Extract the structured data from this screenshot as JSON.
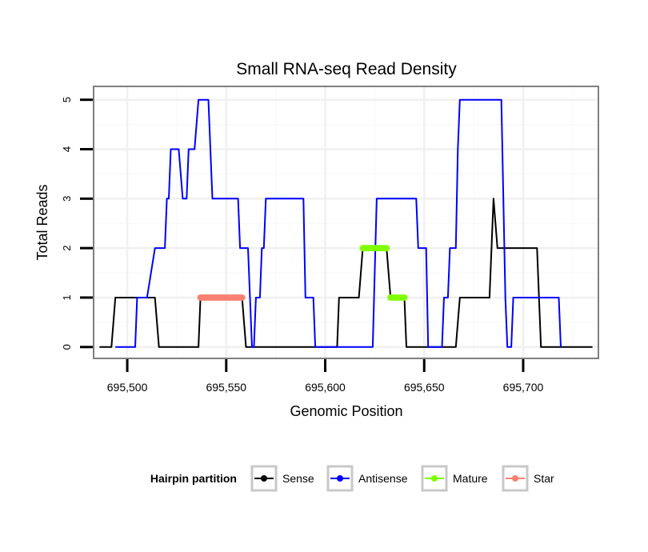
{
  "chart_data": {
    "type": "line",
    "title": "Small RNA-seq Read Density",
    "xlabel": "Genomic Position",
    "ylabel": "Total Reads",
    "xlim": [
      695483,
      695738
    ],
    "ylim": [
      -0.23,
      5.27
    ],
    "xticks": [
      695500,
      695550,
      695600,
      695650,
      695700
    ],
    "xtick_labels": [
      "695,500",
      "695,550",
      "695,600",
      "695,650",
      "695,700"
    ],
    "yticks": [
      0,
      1,
      2,
      3,
      4,
      5
    ],
    "ytick_labels": [
      "0",
      "1",
      "2",
      "3",
      "4",
      "5"
    ],
    "grid": true,
    "legend": {
      "title": "Hairpin partition",
      "position": "bottom",
      "entries": [
        "Sense",
        "Antisense",
        "Mature",
        "Star"
      ]
    },
    "colors": {
      "Sense": "#000000",
      "Antisense": "#0000ff",
      "Mature": "#80ff00",
      "Star": "#fa8072"
    },
    "series": [
      {
        "name": "Sense",
        "color": "#000000",
        "points": [
          [
            695486,
            0
          ],
          [
            695492,
            0
          ],
          [
            695494,
            1
          ],
          [
            695514,
            1
          ],
          [
            695516,
            0
          ],
          [
            695536,
            0
          ],
          [
            695537,
            1
          ],
          [
            695558,
            1
          ],
          [
            695560,
            0
          ],
          [
            695606,
            0
          ],
          [
            695607,
            1
          ],
          [
            695617,
            1
          ],
          [
            695619,
            2
          ],
          [
            695631,
            2
          ],
          [
            695633,
            1
          ],
          [
            695640,
            1
          ],
          [
            695641,
            0
          ],
          [
            695666,
            0
          ],
          [
            695668,
            1
          ],
          [
            695683,
            1
          ],
          [
            695685,
            3
          ],
          [
            695687,
            2
          ],
          [
            695707,
            2
          ],
          [
            695709,
            0
          ],
          [
            695735,
            0
          ]
        ]
      },
      {
        "name": "Antisense",
        "color": "#0000ff",
        "points": [
          [
            695494,
            0
          ],
          [
            695504,
            0
          ],
          [
            695505,
            1
          ],
          [
            695510,
            1
          ],
          [
            695514,
            2
          ],
          [
            695519,
            2
          ],
          [
            695520,
            3
          ],
          [
            695521,
            3
          ],
          [
            695522,
            4
          ],
          [
            695526,
            4
          ],
          [
            695528,
            3
          ],
          [
            695530,
            3
          ],
          [
            695531,
            4
          ],
          [
            695534,
            4
          ],
          [
            695536,
            5
          ],
          [
            695541,
            5
          ],
          [
            695543,
            3
          ],
          [
            695556,
            3
          ],
          [
            695557,
            2
          ],
          [
            695561,
            2
          ],
          [
            695562,
            1
          ],
          [
            695563,
            0
          ],
          [
            695564,
            0
          ],
          [
            695565,
            1
          ],
          [
            695567,
            1
          ],
          [
            695568,
            2
          ],
          [
            695569,
            2
          ],
          [
            695570,
            3
          ],
          [
            695589,
            3
          ],
          [
            695590,
            1
          ],
          [
            695594,
            1
          ],
          [
            695595,
            0
          ],
          [
            695624,
            0
          ],
          [
            695626,
            3
          ],
          [
            695646,
            3
          ],
          [
            695647,
            2
          ],
          [
            695651,
            2
          ],
          [
            695652,
            0
          ],
          [
            695659,
            0
          ],
          [
            695660,
            1
          ],
          [
            695662,
            1
          ],
          [
            695663,
            2
          ],
          [
            695666,
            2
          ],
          [
            695667,
            4
          ],
          [
            695668,
            5
          ],
          [
            695689,
            5
          ],
          [
            695690,
            3
          ],
          [
            695691,
            1
          ],
          [
            695692,
            0
          ],
          [
            695694,
            0
          ],
          [
            695695,
            1
          ],
          [
            695718,
            1
          ],
          [
            695719,
            0
          ]
        ]
      },
      {
        "name": "Mature",
        "color": "#80ff00",
        "points": [
          [
            695619,
            2
          ],
          [
            695620,
            2
          ],
          [
            695621,
            2
          ],
          [
            695622,
            2
          ],
          [
            695623,
            2
          ],
          [
            695624,
            2
          ],
          [
            695625,
            2
          ],
          [
            695626,
            2
          ],
          [
            695627,
            2
          ],
          [
            695628,
            2
          ],
          [
            695629,
            2
          ],
          [
            695630,
            2
          ],
          [
            695631,
            2
          ],
          [
            695633,
            1
          ],
          [
            695634,
            1
          ],
          [
            695635,
            1
          ],
          [
            695636,
            1
          ],
          [
            695637,
            1
          ],
          [
            695638,
            1
          ],
          [
            695639,
            1
          ],
          [
            695640,
            1
          ]
        ]
      },
      {
        "name": "Star",
        "color": "#fa8072",
        "points": [
          [
            695537,
            1
          ],
          [
            695538,
            1
          ],
          [
            695539,
            1
          ],
          [
            695540,
            1
          ],
          [
            695541,
            1
          ],
          [
            695542,
            1
          ],
          [
            695543,
            1
          ],
          [
            695544,
            1
          ],
          [
            695545,
            1
          ],
          [
            695546,
            1
          ],
          [
            695547,
            1
          ],
          [
            695548,
            1
          ],
          [
            695549,
            1
          ],
          [
            695550,
            1
          ],
          [
            695551,
            1
          ],
          [
            695552,
            1
          ],
          [
            695553,
            1
          ],
          [
            695554,
            1
          ],
          [
            695555,
            1
          ],
          [
            695556,
            1
          ],
          [
            695557,
            1
          ],
          [
            695558,
            1
          ]
        ]
      }
    ]
  }
}
